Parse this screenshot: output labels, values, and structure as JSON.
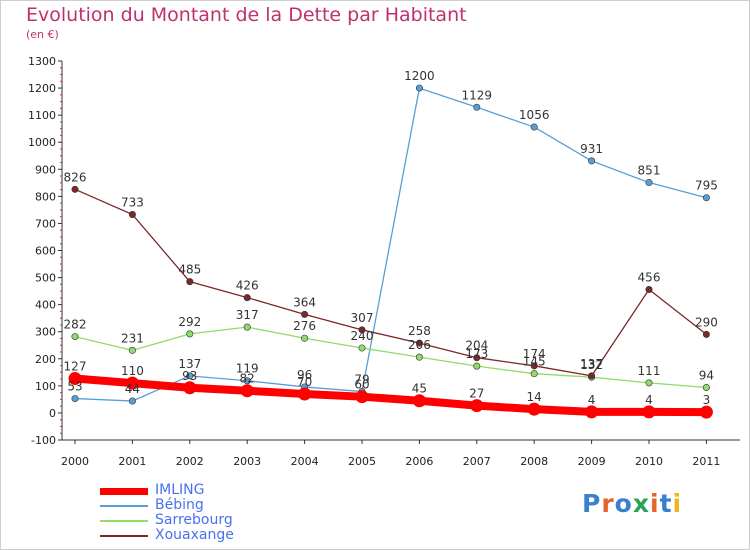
{
  "title": "Evolution du Montant de la Dette par Habitant",
  "subtitle": "(en €)",
  "logo": {
    "text": "Proxiti",
    "letters": [
      "P",
      "r",
      "o",
      "x",
      "i",
      "t",
      "i"
    ],
    "colors": [
      "#3a7fd0",
      "#e8632a",
      "#3a7fd0",
      "#2aa35a",
      "#e8632a",
      "#3a7fd0",
      "#f0b41e"
    ]
  },
  "chart_data": {
    "type": "line",
    "title": "Evolution du Montant de la Dette par Habitant",
    "subtitle": "(en €)",
    "xlabel": "",
    "ylabel": "",
    "x": [
      "2000",
      "2001",
      "2002",
      "2003",
      "2004",
      "2005",
      "2006",
      "2007",
      "2008",
      "2009",
      "2010",
      "2011"
    ],
    "ylim": [
      -100,
      1300
    ],
    "yticks": [
      "-100",
      "0",
      "100",
      "200",
      "300",
      "400",
      "500",
      "600",
      "700",
      "800",
      "900",
      "1000",
      "1100",
      "1200",
      "1300"
    ],
    "grid": false,
    "legend_position": "bottom-left",
    "series": [
      {
        "name": "IMLING",
        "color": "#ff0000",
        "values": [
          127,
          110,
          93,
          82,
          70,
          60,
          45,
          27,
          14,
          4,
          4,
          3
        ],
        "labels": [
          "127",
          "110",
          "93",
          "82",
          "70",
          "60",
          "45",
          "27",
          "14",
          "4",
          "4",
          "3"
        ]
      },
      {
        "name": "Bébing",
        "color": "#5a9fd4",
        "values": [
          53,
          44,
          137,
          119,
          96,
          79,
          1200,
          1129,
          1056,
          931,
          851,
          795
        ],
        "labels": [
          "53",
          "44",
          "137",
          "119",
          "96",
          "79",
          "1200",
          "1129",
          "1056",
          "931",
          "851",
          "795"
        ]
      },
      {
        "name": "Sarrebourg",
        "color": "#8fdc6a",
        "values": [
          282,
          231,
          292,
          317,
          276,
          240,
          206,
          173,
          145,
          132,
          111,
          94
        ],
        "labels": [
          "282",
          "231",
          "292",
          "317",
          "276",
          "240",
          "206",
          "173",
          "145",
          "132",
          "111",
          "94"
        ]
      },
      {
        "name": "Xouaxange",
        "color": "#7a2828",
        "values": [
          826,
          733,
          485,
          426,
          364,
          307,
          258,
          204,
          174,
          137,
          456,
          290
        ],
        "labels": [
          "826",
          "733",
          "485",
          "426",
          "364",
          "307",
          "258",
          "204",
          "174",
          "137",
          "456",
          "290"
        ]
      }
    ]
  }
}
